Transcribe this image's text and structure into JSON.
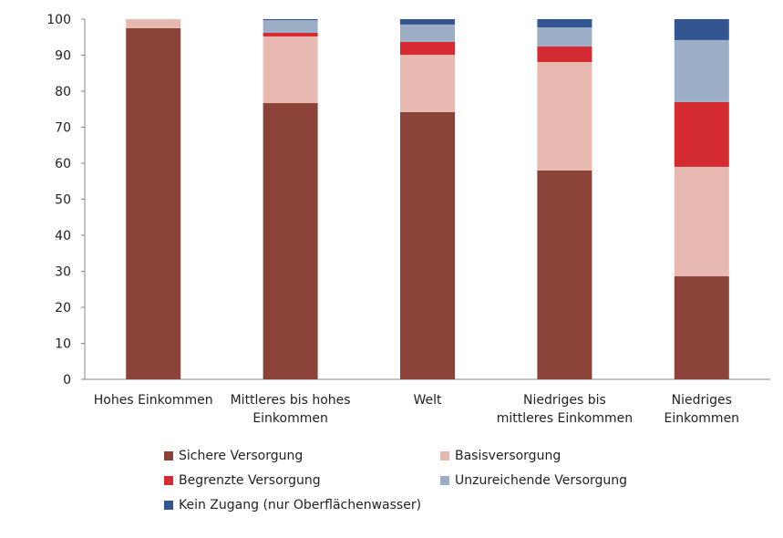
{
  "chart_data": {
    "type": "bar",
    "stacked": true,
    "title": "",
    "xlabel": "",
    "ylabel": "",
    "ylim": [
      0,
      100
    ],
    "yticks": [
      0,
      10,
      20,
      30,
      40,
      50,
      60,
      70,
      80,
      90,
      100
    ],
    "grid": false,
    "legend_position": "bottom",
    "categories": [
      [
        "Hohes Einkommen"
      ],
      [
        "Mittleres bis hohes",
        "Einkommen"
      ],
      [
        "Welt"
      ],
      [
        "Niedriges bis",
        "mittleres Einkommen"
      ],
      [
        "Niedriges",
        "Einkommen"
      ]
    ],
    "series": [
      {
        "name": "Sichere Versorgung",
        "color": "#8B4239",
        "values": [
          97.5,
          76.7,
          74.2,
          58.0,
          28.6
        ]
      },
      {
        "name": "Basisversorgung",
        "color": "#E8B9B0",
        "values": [
          2.5,
          18.5,
          15.9,
          30.1,
          30.4
        ]
      },
      {
        "name": "Begrenzte Versorgung",
        "color": "#D52B33",
        "values": [
          0,
          1.0,
          3.6,
          4.3,
          18.0
        ]
      },
      {
        "name": "Unzureichende Versorgung",
        "color": "#9BAEC6",
        "values": [
          0,
          3.5,
          4.8,
          5.3,
          17.2
        ]
      },
      {
        "name": "Kein Zugang (nur Oberflächenwasser)",
        "color": "#335693",
        "values": [
          0,
          0.3,
          1.5,
          2.3,
          5.8
        ]
      }
    ]
  }
}
